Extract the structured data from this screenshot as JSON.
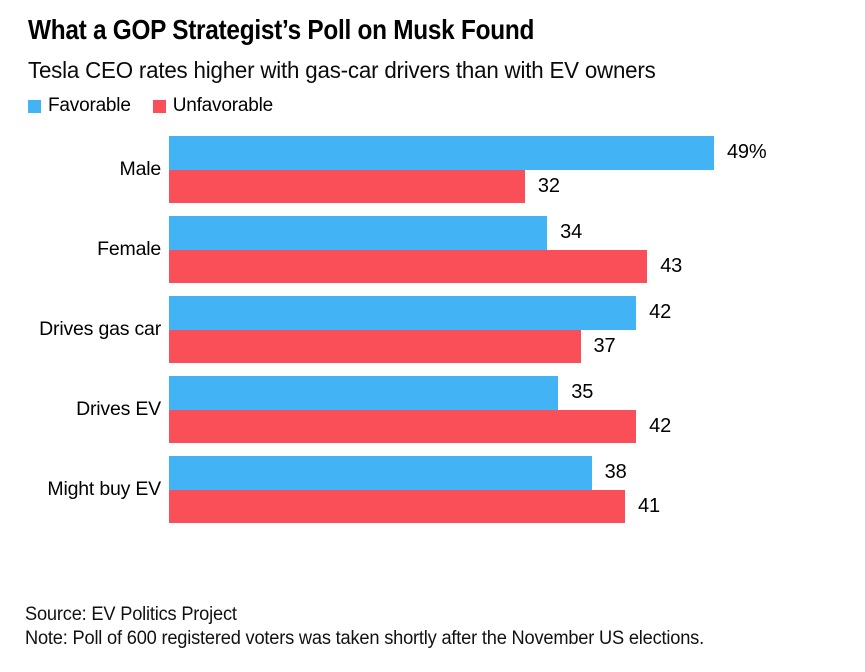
{
  "chart_data": {
    "type": "bar",
    "orientation": "horizontal",
    "title": "What a GOP Strategist’s Poll on Musk Found",
    "subtitle": "Tesla CEO rates higher with gas-car drivers than with EV owners",
    "categories": [
      "Male",
      "Female",
      "Drives gas car",
      "Drives EV",
      "Might buy EV"
    ],
    "series": [
      {
        "name": "Favorable",
        "color": "#42b3f4",
        "values": [
          49,
          34,
          42,
          35,
          38
        ],
        "labels": [
          "49%",
          "34",
          "42",
          "35",
          "38"
        ]
      },
      {
        "name": "Unfavorable",
        "color": "#fa4e59",
        "values": [
          32,
          43,
          37,
          42,
          41
        ],
        "labels": [
          "32",
          "43",
          "37",
          "42",
          "41"
        ]
      }
    ],
    "xlim": [
      0,
      49
    ],
    "grid": false,
    "axes_shown": false,
    "value_labels_shown": true,
    "legend_position": "top-left"
  },
  "footer": {
    "source": "Source: EV Politics Project",
    "note": "Note: Poll of 600 registered voters was taken shortly after the November US elections."
  }
}
